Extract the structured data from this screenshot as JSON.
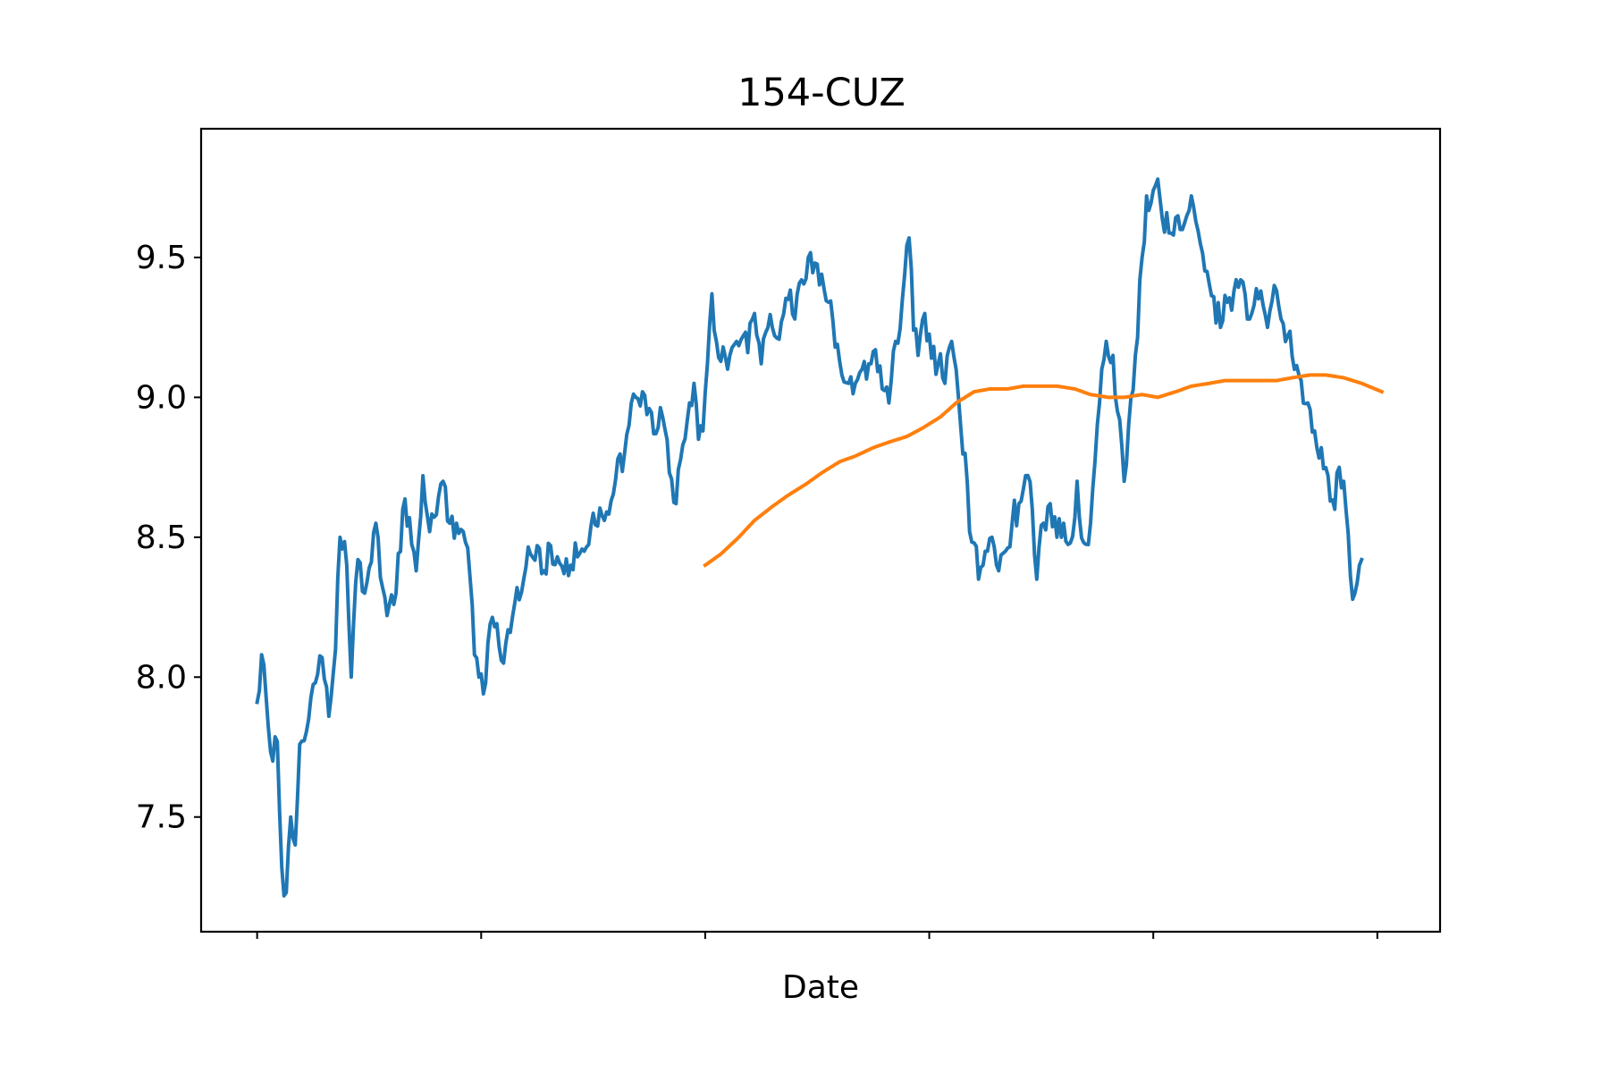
{
  "chart_data": {
    "type": "line",
    "title": "154-CUZ",
    "xlabel": "Date",
    "ylabel": "",
    "xlim": [
      -25,
      528
    ],
    "ylim": [
      7.09,
      9.96
    ],
    "yticks": [
      7.5,
      8.0,
      8.5,
      9.0,
      9.5
    ],
    "ytick_labels": [
      "7.5",
      "8.0",
      "8.5",
      "9.0",
      "9.5"
    ],
    "xticks": [
      0,
      100,
      200,
      300,
      400,
      500
    ],
    "xtick_labels": [
      "",
      "",
      "",
      "",
      "",
      ""
    ],
    "grid": false,
    "series": [
      {
        "color": "#1f77b4",
        "anchors": [
          [
            0,
            7.91
          ],
          [
            2,
            8.08
          ],
          [
            4,
            7.93
          ],
          [
            7,
            7.7
          ],
          [
            9,
            7.77
          ],
          [
            11,
            7.32
          ],
          [
            13,
            7.23
          ],
          [
            15,
            7.5
          ],
          [
            17,
            7.4
          ],
          [
            19,
            7.76
          ],
          [
            23,
            7.85
          ],
          [
            26,
            7.98
          ],
          [
            29,
            8.07
          ],
          [
            32,
            7.86
          ],
          [
            35,
            8.1
          ],
          [
            37,
            8.5
          ],
          [
            40,
            8.4
          ],
          [
            42,
            8.0
          ],
          [
            45,
            8.42
          ],
          [
            48,
            8.3
          ],
          [
            50,
            8.39
          ],
          [
            53,
            8.55
          ],
          [
            56,
            8.32
          ],
          [
            58,
            8.22
          ],
          [
            62,
            8.3
          ],
          [
            65,
            8.6
          ],
          [
            68,
            8.57
          ],
          [
            71,
            8.38
          ],
          [
            74,
            8.72
          ],
          [
            77,
            8.52
          ],
          [
            80,
            8.58
          ],
          [
            83,
            8.7
          ],
          [
            86,
            8.55
          ],
          [
            89,
            8.55
          ],
          [
            92,
            8.52
          ],
          [
            95,
            8.36
          ],
          [
            97,
            8.08
          ],
          [
            99,
            8.0
          ],
          [
            101,
            7.94
          ],
          [
            103,
            8.12
          ],
          [
            106,
            8.18
          ],
          [
            108,
            8.11
          ],
          [
            110,
            8.05
          ],
          [
            113,
            8.16
          ],
          [
            116,
            8.32
          ],
          [
            119,
            8.35
          ],
          [
            122,
            8.44
          ],
          [
            125,
            8.47
          ],
          [
            128,
            8.38
          ],
          [
            131,
            8.47
          ],
          [
            134,
            8.43
          ],
          [
            137,
            8.37
          ],
          [
            140,
            8.4
          ],
          [
            143,
            8.43
          ],
          [
            146,
            8.45
          ],
          [
            149,
            8.54
          ],
          [
            152,
            8.54
          ],
          [
            155,
            8.56
          ],
          [
            158,
            8.63
          ],
          [
            161,
            8.78
          ],
          [
            164,
            8.8
          ],
          [
            166,
            8.9
          ],
          [
            169,
            9.0
          ],
          [
            172,
            9.02
          ],
          [
            175,
            8.96
          ],
          [
            178,
            8.87
          ],
          [
            181,
            8.93
          ],
          [
            184,
            8.73
          ],
          [
            187,
            8.62
          ],
          [
            190,
            8.83
          ],
          [
            193,
            8.98
          ],
          [
            195,
            9.05
          ],
          [
            197,
            8.85
          ],
          [
            199,
            8.88
          ],
          [
            201,
            9.12
          ],
          [
            203,
            9.37
          ],
          [
            205,
            9.2
          ],
          [
            208,
            9.18
          ],
          [
            211,
            9.15
          ],
          [
            214,
            9.2
          ],
          [
            217,
            9.22
          ],
          [
            219,
            9.16
          ],
          [
            222,
            9.3
          ],
          [
            225,
            9.12
          ],
          [
            228,
            9.25
          ],
          [
            231,
            9.22
          ],
          [
            234,
            9.27
          ],
          [
            237,
            9.35
          ],
          [
            240,
            9.28
          ],
          [
            243,
            9.42
          ],
          [
            246,
            9.5
          ],
          [
            249,
            9.48
          ],
          [
            252,
            9.44
          ],
          [
            255,
            9.34
          ],
          [
            258,
            9.18
          ],
          [
            261,
            9.08
          ],
          [
            264,
            9.05
          ],
          [
            267,
            9.05
          ],
          [
            270,
            9.1
          ],
          [
            273,
            9.12
          ],
          [
            276,
            9.17
          ],
          [
            279,
            9.03
          ],
          [
            282,
            8.98
          ],
          [
            285,
            9.2
          ],
          [
            288,
            9.35
          ],
          [
            291,
            9.57
          ],
          [
            293,
            9.24
          ],
          [
            295,
            9.15
          ],
          [
            298,
            9.3
          ],
          [
            301,
            9.14
          ],
          [
            304,
            9.12
          ],
          [
            307,
            9.05
          ],
          [
            310,
            9.2
          ],
          [
            312,
            9.1
          ],
          [
            314,
            8.9
          ],
          [
            316,
            8.8
          ],
          [
            318,
            8.52
          ],
          [
            320,
            8.48
          ],
          [
            322,
            8.35
          ],
          [
            325,
            8.45
          ],
          [
            328,
            8.5
          ],
          [
            331,
            8.38
          ],
          [
            334,
            8.45
          ],
          [
            337,
            8.55
          ],
          [
            340,
            8.62
          ],
          [
            343,
            8.72
          ],
          [
            346,
            8.6
          ],
          [
            348,
            8.35
          ],
          [
            351,
            8.55
          ],
          [
            354,
            8.62
          ],
          [
            357,
            8.5
          ],
          [
            360,
            8.55
          ],
          [
            363,
            8.48
          ],
          [
            366,
            8.7
          ],
          [
            369,
            8.48
          ],
          [
            372,
            8.55
          ],
          [
            375,
            8.9
          ],
          [
            377,
            9.1
          ],
          [
            379,
            9.2
          ],
          [
            382,
            9.15
          ],
          [
            384,
            8.95
          ],
          [
            387,
            8.7
          ],
          [
            389,
            8.9
          ],
          [
            392,
            9.15
          ],
          [
            395,
            9.5
          ],
          [
            397,
            9.72
          ],
          [
            400,
            9.74
          ],
          [
            402,
            9.78
          ],
          [
            404,
            9.64
          ],
          [
            406,
            9.66
          ],
          [
            409,
            9.58
          ],
          [
            412,
            9.6
          ],
          [
            415,
            9.65
          ],
          [
            418,
            9.68
          ],
          [
            421,
            9.55
          ],
          [
            424,
            9.45
          ],
          [
            427,
            9.36
          ],
          [
            430,
            9.25
          ],
          [
            433,
            9.34
          ],
          [
            436,
            9.38
          ],
          [
            439,
            9.42
          ],
          [
            442,
            9.28
          ],
          [
            445,
            9.33
          ],
          [
            448,
            9.38
          ],
          [
            451,
            9.25
          ],
          [
            454,
            9.4
          ],
          [
            457,
            9.28
          ],
          [
            460,
            9.22
          ],
          [
            463,
            9.1
          ],
          [
            466,
            9.06
          ],
          [
            469,
            8.98
          ],
          [
            472,
            8.88
          ],
          [
            475,
            8.82
          ],
          [
            478,
            8.72
          ],
          [
            481,
            8.6
          ],
          [
            483,
            8.75
          ],
          [
            485,
            8.7
          ],
          [
            486,
            8.6
          ],
          [
            488,
            8.36
          ],
          [
            490,
            8.3
          ],
          [
            492,
            8.4
          ],
          [
            493,
            8.42
          ]
        ],
        "noise_amplitude": 0.06
      },
      {
        "color": "#ff7f0e",
        "anchors": [
          [
            200,
            8.4
          ],
          [
            207,
            8.44
          ],
          [
            215,
            8.5
          ],
          [
            222,
            8.56
          ],
          [
            230,
            8.61
          ],
          [
            237,
            8.65
          ],
          [
            245,
            8.69
          ],
          [
            252,
            8.73
          ],
          [
            260,
            8.77
          ],
          [
            267,
            8.79
          ],
          [
            275,
            8.82
          ],
          [
            282,
            8.84
          ],
          [
            290,
            8.86
          ],
          [
            297,
            8.89
          ],
          [
            305,
            8.93
          ],
          [
            312,
            8.98
          ],
          [
            320,
            9.02
          ],
          [
            327,
            9.03
          ],
          [
            335,
            9.03
          ],
          [
            342,
            9.04
          ],
          [
            350,
            9.04
          ],
          [
            357,
            9.04
          ],
          [
            365,
            9.03
          ],
          [
            372,
            9.01
          ],
          [
            380,
            9.0
          ],
          [
            387,
            9.0
          ],
          [
            395,
            9.01
          ],
          [
            402,
            9.0
          ],
          [
            410,
            9.02
          ],
          [
            417,
            9.04
          ],
          [
            425,
            9.05
          ],
          [
            432,
            9.06
          ],
          [
            440,
            9.06
          ],
          [
            447,
            9.06
          ],
          [
            455,
            9.06
          ],
          [
            462,
            9.07
          ],
          [
            470,
            9.08
          ],
          [
            477,
            9.08
          ],
          [
            485,
            9.07
          ],
          [
            493,
            9.05
          ],
          [
            502,
            9.02
          ]
        ],
        "noise_amplitude": 0.0
      }
    ]
  }
}
